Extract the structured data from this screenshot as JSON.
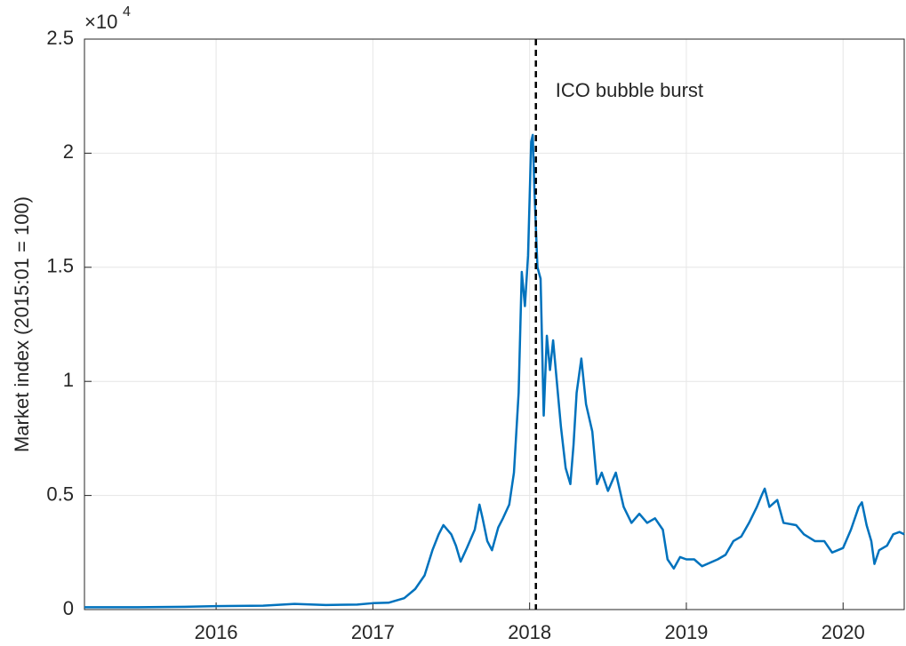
{
  "chart_data": {
    "type": "line",
    "y_label": "Market index (2015:01 = 100)",
    "y_multiplier": {
      "base": "×10",
      "exponent": "4"
    },
    "x": [
      2015.16,
      2015.5,
      2015.8,
      2016.0,
      2016.3,
      2016.5,
      2016.7,
      2016.9,
      2017.0,
      2017.1,
      2017.2,
      2017.27,
      2017.33,
      2017.38,
      2017.42,
      2017.45,
      2017.5,
      2017.53,
      2017.56,
      2017.6,
      2017.65,
      2017.68,
      2017.7,
      2017.73,
      2017.76,
      2017.8,
      2017.83,
      2017.87,
      2017.9,
      2017.93,
      2017.95,
      2017.97,
      2017.99,
      2018.01,
      2018.02,
      2018.03,
      2018.05,
      2018.07,
      2018.09,
      2018.11,
      2018.13,
      2018.15,
      2018.18,
      2018.2,
      2018.23,
      2018.26,
      2018.28,
      2018.3,
      2018.33,
      2018.36,
      2018.4,
      2018.43,
      2018.46,
      2018.5,
      2018.55,
      2018.6,
      2018.65,
      2018.7,
      2018.75,
      2018.8,
      2018.85,
      2018.88,
      2018.92,
      2018.96,
      2019.0,
      2019.05,
      2019.1,
      2019.2,
      2019.25,
      2019.3,
      2019.35,
      2019.4,
      2019.45,
      2019.48,
      2019.5,
      2019.53,
      2019.58,
      2019.62,
      2019.7,
      2019.75,
      2019.82,
      2019.88,
      2019.93,
      2020.0,
      2020.05,
      2020.1,
      2020.12,
      2020.15,
      2020.18,
      2020.2,
      2020.23,
      2020.28,
      2020.32,
      2020.36,
      2020.39
    ],
    "series": [
      {
        "color": "#0072bd",
        "values": [
          0.01,
          0.01,
          0.012,
          0.015,
          0.017,
          0.025,
          0.02,
          0.022,
          0.028,
          0.03,
          0.05,
          0.09,
          0.15,
          0.26,
          0.33,
          0.37,
          0.33,
          0.28,
          0.21,
          0.27,
          0.35,
          0.46,
          0.4,
          0.3,
          0.26,
          0.36,
          0.4,
          0.46,
          0.6,
          0.95,
          1.48,
          1.33,
          1.55,
          2.05,
          2.08,
          1.85,
          1.5,
          1.45,
          0.85,
          1.2,
          1.05,
          1.18,
          0.95,
          0.8,
          0.62,
          0.55,
          0.72,
          0.95,
          1.1,
          0.9,
          0.78,
          0.55,
          0.6,
          0.52,
          0.6,
          0.45,
          0.38,
          0.42,
          0.38,
          0.4,
          0.35,
          0.22,
          0.18,
          0.23,
          0.22,
          0.22,
          0.19,
          0.22,
          0.24,
          0.3,
          0.32,
          0.38,
          0.45,
          0.5,
          0.53,
          0.45,
          0.48,
          0.38,
          0.37,
          0.33,
          0.3,
          0.3,
          0.25,
          0.27,
          0.35,
          0.45,
          0.47,
          0.37,
          0.3,
          0.2,
          0.26,
          0.28,
          0.33,
          0.34,
          0.33
        ]
      }
    ],
    "xlim": [
      2015.16,
      2020.39
    ],
    "xticks": [
      2016,
      2017,
      2018,
      2019,
      2020
    ],
    "ylim": [
      0,
      2.5
    ],
    "yticks": [
      0,
      0.5,
      1,
      1.5,
      2,
      2.5
    ],
    "grid": true,
    "event_line": {
      "x": 2018.04,
      "label": "ICO bubble burst"
    }
  }
}
